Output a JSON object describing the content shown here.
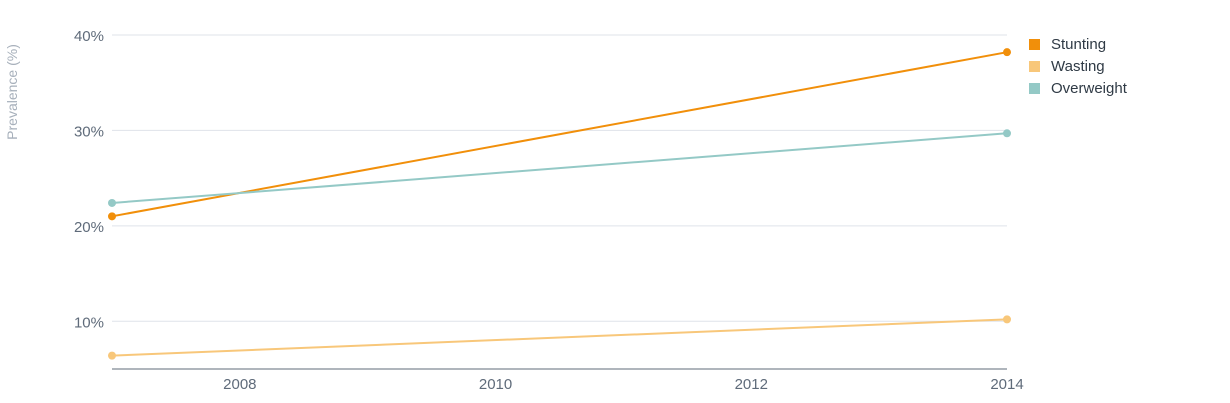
{
  "chart_data": {
    "type": "line",
    "ylabel": "Prevalence (%)",
    "xlim": [
      2007,
      2014
    ],
    "ylim": [
      5,
      40
    ],
    "x_ticks": [
      "2008",
      "2010",
      "2012",
      "2014"
    ],
    "y_ticks": [
      "10%",
      "20%",
      "30%",
      "40%"
    ],
    "legend_position": "top-right",
    "series": [
      {
        "name": "Stunting",
        "color": "#f18f0a",
        "points": [
          [
            2007,
            21.0
          ],
          [
            2014,
            38.2
          ]
        ]
      },
      {
        "name": "Wasting",
        "color": "#f8c77a",
        "points": [
          [
            2007,
            6.4
          ],
          [
            2014,
            10.2
          ]
        ]
      },
      {
        "name": "Overweight",
        "color": "#94c9c6",
        "points": [
          [
            2007,
            22.4
          ],
          [
            2014,
            29.7
          ]
        ]
      }
    ]
  }
}
